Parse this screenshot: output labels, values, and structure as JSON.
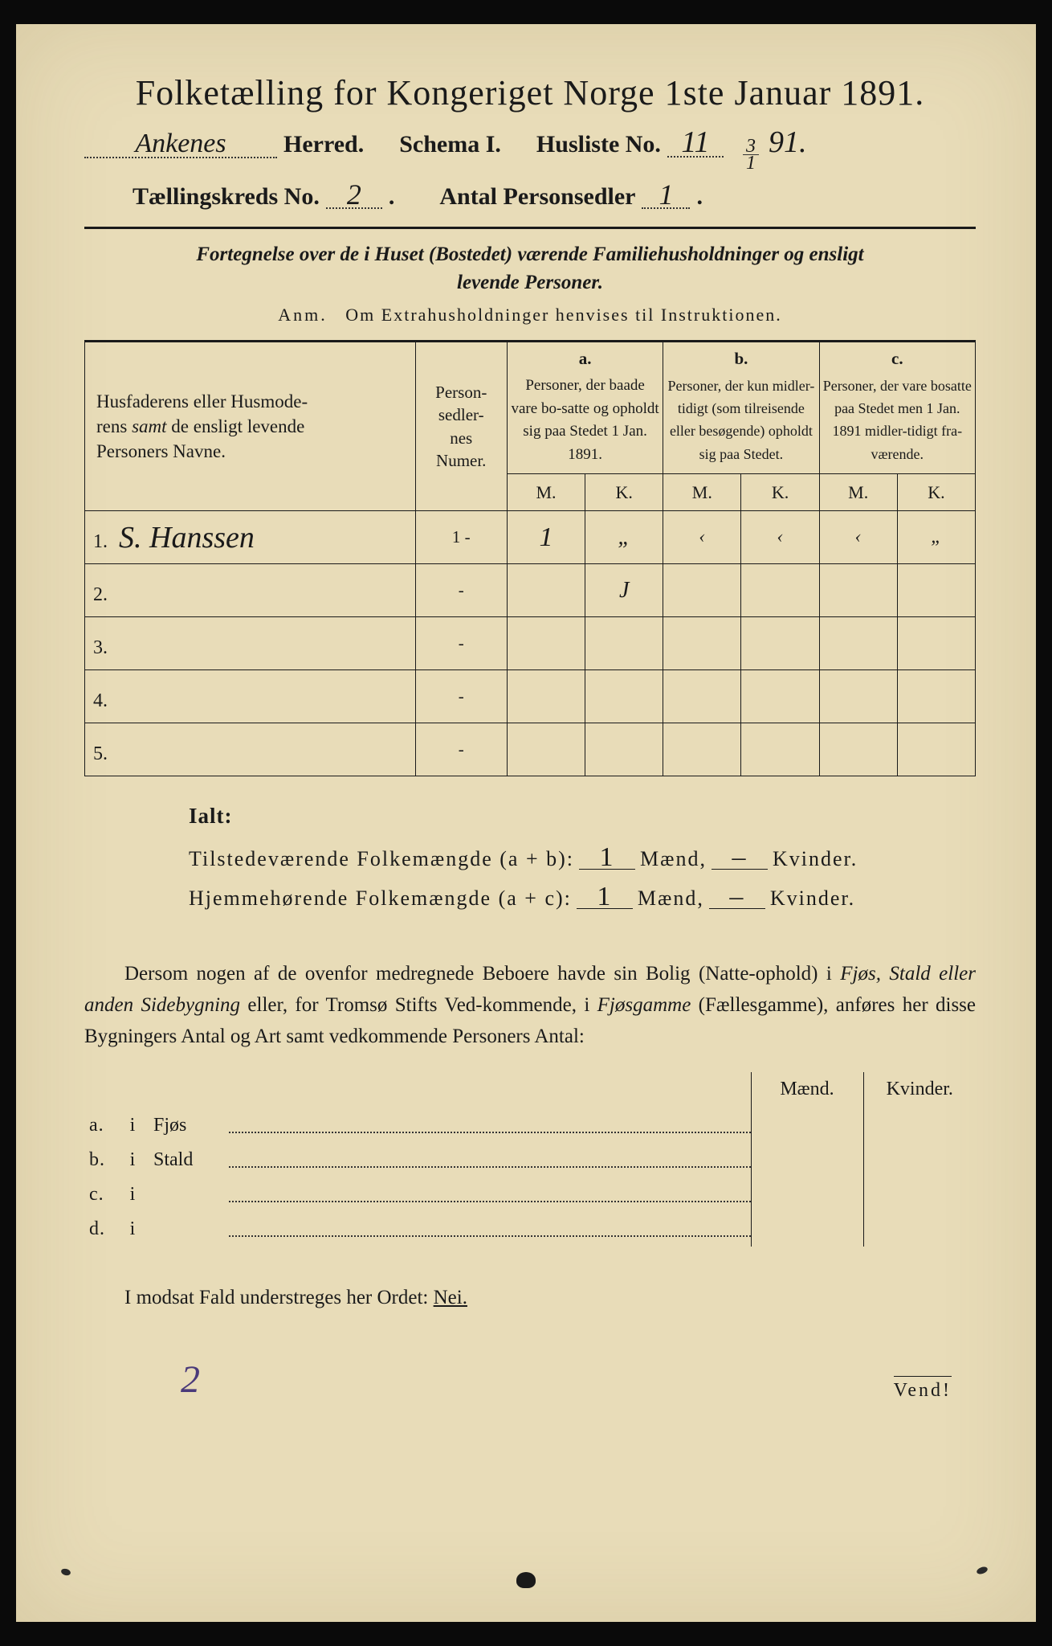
{
  "colors": {
    "paper": "#e8dcb8",
    "ink": "#1a1a1a",
    "pencil": "#4a3a7a",
    "frame": "#0a0a0a"
  },
  "title": "Folketælling for Kongeriget Norge 1ste Januar 1891.",
  "header": {
    "herred_hand": "Ankenes",
    "herred_label": "Herred.",
    "schema_label": "Schema I.",
    "husliste_label": "Husliste No.",
    "husliste_no": "11",
    "date_top": "3",
    "date_bot": "1",
    "year": "91.",
    "kreds_label": "Tællingskreds No.",
    "kreds_no": "2",
    "antal_label": "Antal Personsedler",
    "antal_no": "1"
  },
  "subtitle_line1": "Fortegnelse over de i Huset (Bostedet) værende Familiehusholdninger og ensligt",
  "subtitle_line2": "levende Personer.",
  "anm_label": "Anm.",
  "anm_text": "Om Extrahusholdninger henvises til Instruktionen.",
  "table": {
    "head_names_l1": "Husfaderens eller Husmode-",
    "head_names_l2": "rens ",
    "head_names_em": "samt",
    "head_names_l3": " de ensligt levende",
    "head_names_l4": "Personers Navne.",
    "head_numer_l1": "Person-",
    "head_numer_l2": "sedler-",
    "head_numer_l3": "nes",
    "head_numer_l4": "Numer.",
    "col_a_letter": "a.",
    "col_a_text": "Personer, der baade vare bo-satte og opholdt sig paa Stedet 1 Jan. 1891.",
    "col_b_letter": "b.",
    "col_b_text": "Personer, der kun midler-tidigt (som tilreisende eller besøgende) opholdt sig paa Stedet.",
    "col_c_letter": "c.",
    "col_c_text": "Personer, der vare bosatte paa Stedet men 1 Jan. 1891 midler-tidigt fra-værende.",
    "m": "M.",
    "k": "K.",
    "rows": [
      {
        "num": "1.",
        "name": "S. Hanssen",
        "sedler": "1 -",
        "a_m": "1",
        "a_k": "„",
        "b_m": "‹",
        "b_k": "‹",
        "c_m": "‹",
        "c_k": "„"
      },
      {
        "num": "2.",
        "name": "",
        "sedler": "-",
        "a_m": "",
        "a_k": "J",
        "b_m": "",
        "b_k": "",
        "c_m": "",
        "c_k": ""
      },
      {
        "num": "3.",
        "name": "",
        "sedler": "-",
        "a_m": "",
        "a_k": "",
        "b_m": "",
        "b_k": "",
        "c_m": "",
        "c_k": ""
      },
      {
        "num": "4.",
        "name": "",
        "sedler": "-",
        "a_m": "",
        "a_k": "",
        "b_m": "",
        "b_k": "",
        "c_m": "",
        "c_k": ""
      },
      {
        "num": "5.",
        "name": "",
        "sedler": "-",
        "a_m": "",
        "a_k": "",
        "b_m": "",
        "b_k": "",
        "c_m": "",
        "c_k": ""
      }
    ]
  },
  "ialt": "Ialt:",
  "sum1_label": "Tilstedeværende Folkemængde (a + b):",
  "sum1_m": "1",
  "maend": "Mænd,",
  "sum1_k": "–",
  "kvinder": "Kvinder.",
  "sum2_label": "Hjemmehørende Folkemængde (a + c):",
  "sum2_m": "1",
  "sum2_k": "–",
  "para": {
    "p1": "Dersom nogen af de ovenfor medregnede Beboere havde sin Bolig (Natte-ophold) i ",
    "em1": "Fjøs, Stald eller anden Sidebygning",
    "p2": " eller, for Tromsø Stifts Ved-kommende, i ",
    "em2": "Fjøsgamme",
    "p3": " (Fællesgamme), anføres her disse Bygningers Antal og Art samt vedkommende Personers Antal:"
  },
  "outbuild": {
    "maend": "Mænd.",
    "kvinder": "Kvinder.",
    "rows": [
      {
        "l": "a.",
        "i": "i",
        "t": "Fjøs"
      },
      {
        "l": "b.",
        "i": "i",
        "t": "Stald"
      },
      {
        "l": "c.",
        "i": "i",
        "t": ""
      },
      {
        "l": "d.",
        "i": "i",
        "t": ""
      }
    ]
  },
  "nei_pre": "I modsat Fald understreges her Ordet: ",
  "nei": "Nei.",
  "bottom_hand": "2",
  "vend": "Vend!"
}
